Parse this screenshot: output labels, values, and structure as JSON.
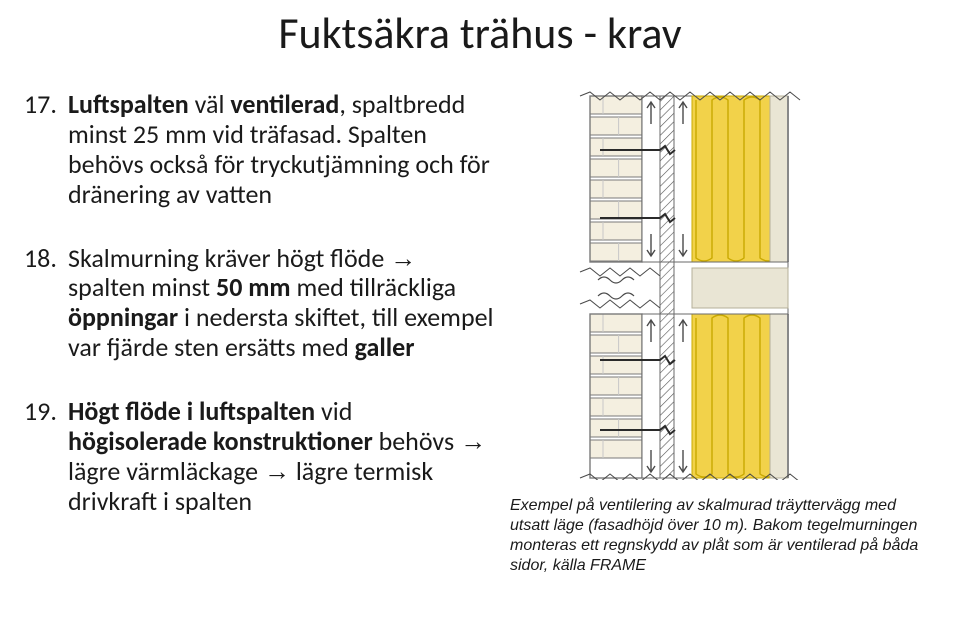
{
  "title": "Fuktsäkra trähus - krav",
  "items": [
    {
      "num": "17.",
      "html": "<b>Luftspalten</b> väl <b>ventilerad</b>, spaltbredd minst 25 mm vid träfasad. Spalten behövs också för tryckutjämning och för dränering av vatten"
    },
    {
      "num": "18.",
      "html": "Skalmurning kräver högt flöde <span class=\"arrow\">→</span> spalten minst <b>50 mm</b> med tillräckliga <b>öppningar</b> i nedersta skiftet, till exempel var fjärde sten ersätts med <b>galler</b>"
    },
    {
      "num": "19.",
      "html": "<b>Högt flöde i luftspalten</b> vid <b>högisolerade konstruktioner</b> behövs <span class=\"arrow\">→</span> lägre värmläckage <span class=\"arrow\">→</span> lägre termisk drivkraft i spalten"
    }
  ],
  "caption": "Exempel på ventilering av skalmurad träyttervägg med utsatt läge (fasadhöjd över 10 m). Bakom tegelmurningen monteras ett regnskydd av plåt som är ventilerad på båda sidor, källa FRAME",
  "figure": {
    "bg": "#ffffff",
    "brick_fill": "#f4efe0",
    "brick_stroke": "#7a7a7a",
    "mortar": "#c7c7c7",
    "gap_outline": "#6a6a6a",
    "hatch": "#555555",
    "insulation": "#f2d24a",
    "insulation_stroke": "#c9a900",
    "inner_layer": "#e9e5d4",
    "tie": "#2a2a2a",
    "arrow": "#4a4a4a",
    "zigzag": "#4a4a4a"
  }
}
